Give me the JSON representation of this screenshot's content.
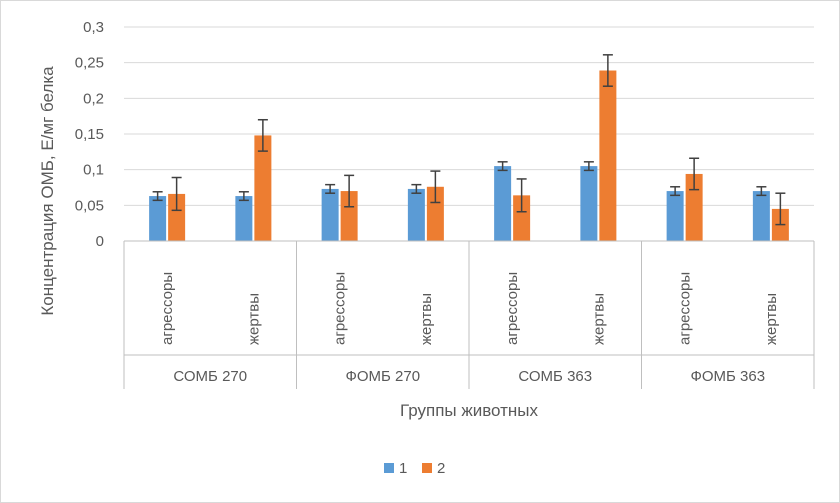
{
  "chart_data": {
    "type": "bar",
    "title": "",
    "xlabel": "Группы животных",
    "ylabel": "Концентрация ОМБ, Е/мг белка",
    "ylim": [
      0,
      0.3
    ],
    "yticks": [
      {
        "value": 0,
        "label": "0"
      },
      {
        "value": 0.05,
        "label": "0,05"
      },
      {
        "value": 0.1,
        "label": "0,1"
      },
      {
        "value": 0.15,
        "label": "0,15"
      },
      {
        "value": 0.2,
        "label": "0,2"
      },
      {
        "value": 0.25,
        "label": "0,25"
      },
      {
        "value": 0.3,
        "label": "0,3"
      }
    ],
    "groups": [
      "СОМБ 270",
      "ФОМБ 270",
      "СОМБ 363",
      "ФОМБ 363"
    ],
    "categories": [
      "агрессоры",
      "жертвы",
      "агрессоры",
      "жертвы",
      "агрессоры",
      "жертвы",
      "агрессоры",
      "жертвы"
    ],
    "series": [
      {
        "name": "1",
        "color": "#5b9bd5",
        "values": [
          0.063,
          0.063,
          0.073,
          0.073,
          0.105,
          0.105,
          0.07,
          0.07
        ],
        "errors": [
          0.006,
          0.006,
          0.006,
          0.006,
          0.006,
          0.006,
          0.006,
          0.006
        ]
      },
      {
        "name": "2",
        "color": "#ed7d31",
        "values": [
          0.066,
          0.148,
          0.07,
          0.076,
          0.064,
          0.239,
          0.094,
          0.045
        ],
        "errors": [
          0.023,
          0.022,
          0.022,
          0.022,
          0.023,
          0.022,
          0.022,
          0.022
        ]
      }
    ],
    "legend_position": "bottom",
    "grid": true
  }
}
